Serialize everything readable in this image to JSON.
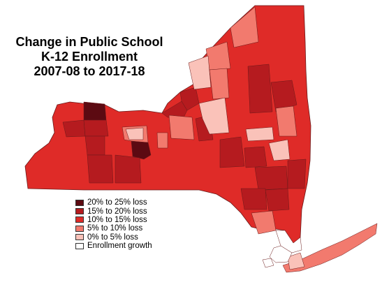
{
  "title": {
    "line1": "Change in Public School",
    "line2": "K-12 Enrollment",
    "line3": "2007-08 to 2017-18"
  },
  "colors": {
    "loss_20_25": "#5c0a12",
    "loss_15_20": "#b51b1f",
    "loss_10_15": "#df2b28",
    "loss_5_10": "#f27a6e",
    "loss_0_5": "#fac2b9",
    "growth": "#ffffff"
  },
  "legend": [
    {
      "label": "20% to 25% loss",
      "color": "#5c0a12"
    },
    {
      "label": "15% to 20% loss",
      "color": "#b51b1f"
    },
    {
      "label": "10% to 15% loss",
      "color": "#df2b28"
    },
    {
      "label": "5% to 10% loss",
      "color": "#f27a6e"
    },
    {
      "label": "0% to 5% loss",
      "color": "#fac2b9"
    },
    {
      "label": "Enrollment growth",
      "color": "#ffffff"
    }
  ]
}
